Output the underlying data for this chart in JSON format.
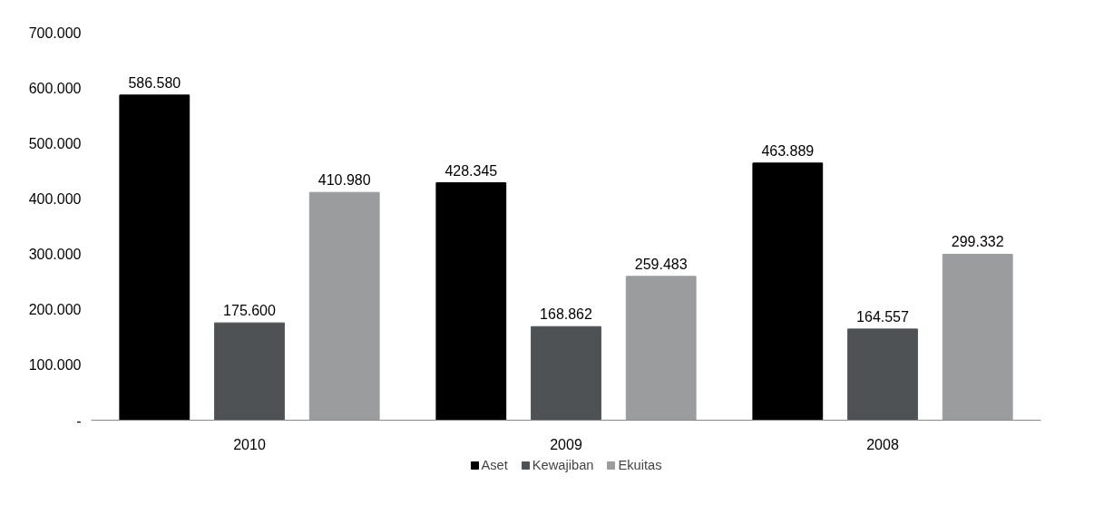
{
  "chart_data": {
    "type": "bar",
    "categories": [
      "2010",
      "2009",
      "2008"
    ],
    "series": [
      {
        "name": "Aset",
        "color": "#000000",
        "values": [
          586580,
          428345,
          463889
        ],
        "value_labels": [
          "586.580",
          "428.345",
          "463.889"
        ]
      },
      {
        "name": "Kewajiban",
        "color": "#4f5254",
        "values": [
          175600,
          168862,
          164557
        ],
        "value_labels": [
          "175.600",
          "168.862",
          "164.557"
        ]
      },
      {
        "name": "Ekuitas",
        "color": "#9a9c9d",
        "values": [
          410980,
          259483,
          299332
        ],
        "value_labels": [
          "410.980",
          "259.483",
          "299.332"
        ]
      }
    ],
    "ylim": [
      0,
      700000
    ],
    "yticks": [
      {
        "value": 0,
        "label": "-"
      },
      {
        "value": 100000,
        "label": "100.000"
      },
      {
        "value": 200000,
        "label": "200.000"
      },
      {
        "value": 300000,
        "label": "300.000"
      },
      {
        "value": 400000,
        "label": "400.000"
      },
      {
        "value": 500000,
        "label": "500.000"
      },
      {
        "value": 600000,
        "label": "600.000"
      },
      {
        "value": 700000,
        "label": "700.000"
      }
    ],
    "grid": false,
    "legend": "bottom"
  }
}
